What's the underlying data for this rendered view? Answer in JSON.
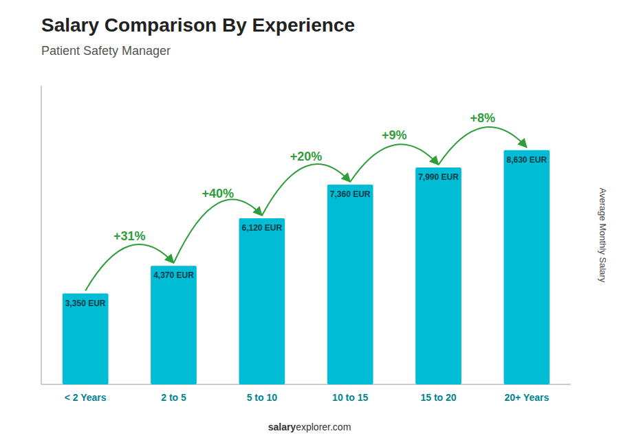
{
  "chart_data": {
    "type": "bar",
    "title": "Salary Comparison By Experience",
    "subtitle": "Patient Safety Manager",
    "y_label": "Average Monthly Salary",
    "categories": [
      "< 2 Years",
      "2 to 5",
      "5 to 10",
      "10 to 15",
      "15 to 20",
      "20+ Years"
    ],
    "values": [
      3350,
      4370,
      6120,
      7360,
      7990,
      8630
    ],
    "value_labels": [
      "3,350 EUR",
      "4,370 EUR",
      "6,120 EUR",
      "7,360 EUR",
      "7,990 EUR",
      "8,630 EUR"
    ],
    "data_labels": true,
    "annotations": [
      "+31%",
      "+40%",
      "+20%",
      "+9%",
      "+8%"
    ],
    "color": "#00bcd4",
    "ylim": [
      0,
      11000
    ],
    "tick_labels": "x",
    "grid": false,
    "footer": [
      "salary",
      "explorer.com"
    ]
  }
}
